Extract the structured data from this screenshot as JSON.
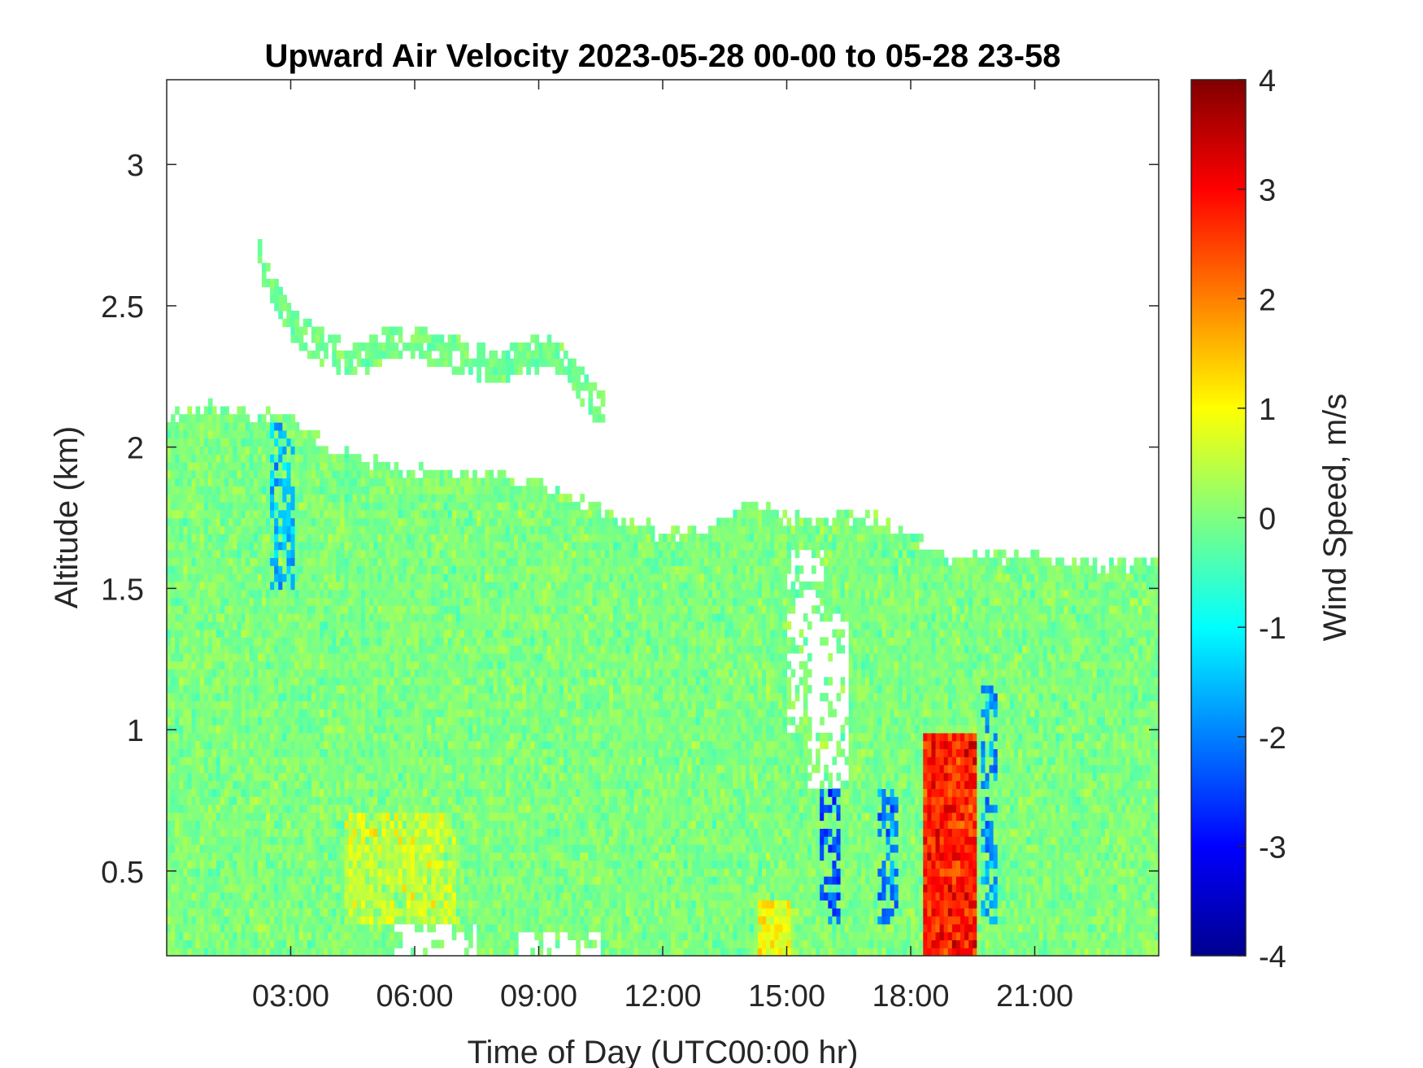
{
  "chart_data": {
    "type": "heatmap",
    "title": "Upward Air Velocity 2023-05-28 00-00 to 05-28 23-58",
    "xlabel": "Time of Day (UTC00:00 hr)",
    "ylabel": "Altitude (km)",
    "xlim": [
      0,
      24
    ],
    "ylim": [
      0.2,
      3.3
    ],
    "x_ticks": [
      3,
      6,
      9,
      12,
      15,
      18,
      21
    ],
    "x_tick_labels": [
      "03:00",
      "06:00",
      "09:00",
      "12:00",
      "15:00",
      "18:00",
      "21:00"
    ],
    "y_ticks": [
      0.5,
      1,
      1.5,
      2,
      2.5,
      3
    ],
    "y_tick_labels": [
      "0.5",
      "1",
      "1.5",
      "2",
      "2.5",
      "3"
    ],
    "colorbar": {
      "label": "Wind Speed, m/s",
      "range": [
        -4,
        4
      ],
      "ticks": [
        -4,
        -3,
        -2,
        -1,
        0,
        1,
        2,
        3,
        4
      ],
      "tick_labels": [
        "-4",
        "-3",
        "-2",
        "-1",
        "0",
        "1",
        "2",
        "3",
        "4"
      ],
      "colormap": "jet"
    },
    "data_top_km": [
      [
        0,
        2.1
      ],
      [
        1,
        2.15
      ],
      [
        2,
        2.12
      ],
      [
        3,
        2.1
      ],
      [
        4,
        1.98
      ],
      [
        5,
        1.95
      ],
      [
        6,
        1.92
      ],
      [
        7,
        1.9
      ],
      [
        8,
        1.9
      ],
      [
        9,
        1.88
      ],
      [
        10,
        1.8
      ],
      [
        11,
        1.75
      ],
      [
        12,
        1.7
      ],
      [
        13,
        1.7
      ],
      [
        14,
        1.8
      ],
      [
        15,
        1.75
      ],
      [
        16,
        1.75
      ],
      [
        17,
        1.75
      ],
      [
        18,
        1.7
      ],
      [
        19,
        1.6
      ],
      [
        20,
        1.62
      ],
      [
        21,
        1.62
      ],
      [
        22,
        1.58
      ],
      [
        23,
        1.58
      ],
      [
        24,
        1.6
      ]
    ],
    "cloud_layer": [
      [
        2.2,
        2.68
      ],
      [
        2.6,
        2.55
      ],
      [
        3.2,
        2.4
      ],
      [
        4.5,
        2.3
      ],
      [
        5.5,
        2.38
      ],
      [
        6.5,
        2.35
      ],
      [
        8,
        2.28
      ],
      [
        9.3,
        2.35
      ],
      [
        10,
        2.22
      ],
      [
        10.6,
        2.12
      ]
    ],
    "clear_gap_km": [
      [
        15.5,
        1.0,
        1.65
      ],
      [
        16.0,
        0.8,
        1.4
      ]
    ],
    "updraft_regions": [
      {
        "x_range": [
          18.3,
          19.6
        ],
        "alt_range": [
          0.2,
          1.0
        ],
        "velocity": 2.8
      },
      {
        "x_range": [
          14.3,
          15.1
        ],
        "alt_range": [
          0.2,
          0.4
        ],
        "velocity": 1.0
      },
      {
        "x_range": [
          4.3,
          7
        ],
        "alt_range": [
          0.3,
          0.7
        ],
        "velocity": 0.5
      }
    ],
    "downdraft_regions": [
      {
        "x_range": [
          15.8,
          16.3
        ],
        "alt_range": [
          0.3,
          0.8
        ],
        "velocity": -2.5
      },
      {
        "x_range": [
          17.2,
          17.7
        ],
        "alt_range": [
          0.3,
          0.8
        ],
        "velocity": -2.0
      },
      {
        "x_range": [
          19.7,
          20.1
        ],
        "alt_range": [
          0.3,
          1.15
        ],
        "velocity": -1.7
      },
      {
        "x_range": [
          2.5,
          3.1
        ],
        "alt_range": [
          1.5,
          2.1
        ],
        "velocity": -1.5
      }
    ],
    "bottom_gap": [
      [
        8.5,
        10.5,
        0.28
      ],
      [
        5.5,
        7.5,
        0.3
      ]
    ],
    "dominant_velocity": 0
  }
}
